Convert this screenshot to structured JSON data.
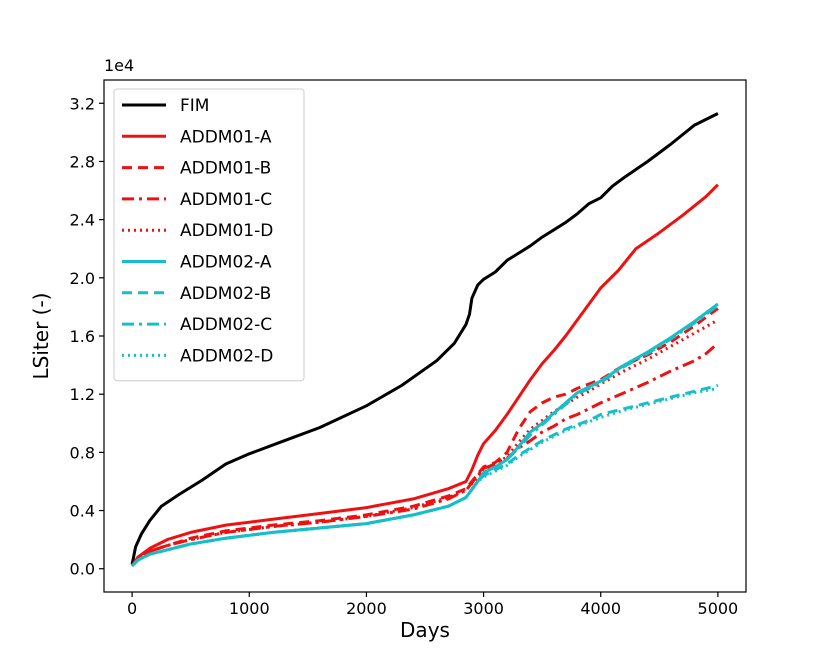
{
  "chart_data": {
    "type": "line",
    "xlabel": "Days",
    "ylabel": "LSiter  (-)",
    "offset_label": "1e4",
    "xlim": [
      -240,
      5240
    ],
    "ylim": [
      -0.16,
      3.36
    ],
    "xticks": [
      0,
      1000,
      2000,
      3000,
      4000,
      5000
    ],
    "yticks": [
      0.0,
      0.4,
      0.8,
      1.2,
      1.6,
      2.0,
      2.4,
      2.8,
      3.2
    ],
    "ytick_labels": [
      "0.0",
      "0.4",
      "0.8",
      "1.2",
      "1.6",
      "2.0",
      "2.4",
      "2.8",
      "3.2"
    ],
    "legend_position": "upper-left",
    "grid": false,
    "series": [
      {
        "name": "FIM",
        "color": "#000000",
        "dash": "solid",
        "x": [
          0,
          30,
          80,
          150,
          250,
          400,
          600,
          800,
          1000,
          1300,
          1600,
          2000,
          2300,
          2600,
          2750,
          2850,
          2880,
          2900,
          2950,
          3000,
          3100,
          3200,
          3300,
          3400,
          3500,
          3600,
          3700,
          3800,
          3900,
          4000,
          4100,
          4200,
          4400,
          4600,
          4800,
          5000
        ],
        "y": [
          0.03,
          0.15,
          0.24,
          0.33,
          0.43,
          0.51,
          0.61,
          0.72,
          0.79,
          0.88,
          0.97,
          1.12,
          1.26,
          1.43,
          1.55,
          1.68,
          1.75,
          1.86,
          1.95,
          1.99,
          2.04,
          2.12,
          2.17,
          2.22,
          2.28,
          2.33,
          2.38,
          2.44,
          2.51,
          2.55,
          2.63,
          2.69,
          2.8,
          2.92,
          3.05,
          3.13
        ]
      },
      {
        "name": "ADDM01-A",
        "color": "#ee1111",
        "dash": "solid",
        "x": [
          0,
          50,
          150,
          300,
          500,
          800,
          1200,
          1600,
          2000,
          2400,
          2700,
          2850,
          2900,
          2950,
          3000,
          3100,
          3200,
          3300,
          3400,
          3500,
          3600,
          3700,
          3800,
          3900,
          4000,
          4150,
          4300,
          4500,
          4700,
          4900,
          5000
        ],
        "y": [
          0.02,
          0.08,
          0.14,
          0.2,
          0.25,
          0.3,
          0.34,
          0.38,
          0.42,
          0.48,
          0.55,
          0.6,
          0.68,
          0.78,
          0.86,
          0.95,
          1.06,
          1.18,
          1.3,
          1.41,
          1.5,
          1.6,
          1.71,
          1.82,
          1.93,
          2.05,
          2.2,
          2.31,
          2.43,
          2.56,
          2.64
        ]
      },
      {
        "name": "ADDM01-B",
        "color": "#ee1111",
        "dash": "10,6",
        "x": [
          0,
          50,
          150,
          300,
          500,
          800,
          1200,
          1600,
          2000,
          2400,
          2700,
          2850,
          2950,
          3000,
          3100,
          3200,
          3300,
          3400,
          3500,
          3600,
          3700,
          3800,
          4000,
          4200,
          4400,
          4600,
          4800,
          5000
        ],
        "y": [
          0.02,
          0.07,
          0.12,
          0.16,
          0.21,
          0.26,
          0.3,
          0.33,
          0.37,
          0.43,
          0.5,
          0.55,
          0.65,
          0.7,
          0.73,
          0.8,
          0.96,
          1.08,
          1.14,
          1.18,
          1.2,
          1.24,
          1.3,
          1.4,
          1.47,
          1.56,
          1.67,
          1.79
        ]
      },
      {
        "name": "ADDM01-C",
        "color": "#ee1111",
        "dash": "12,5,3,5",
        "x": [
          0,
          50,
          150,
          300,
          500,
          800,
          1200,
          1600,
          2000,
          2400,
          2700,
          2850,
          2950,
          3000,
          3100,
          3200,
          3300,
          3400,
          3500,
          3600,
          3700,
          3800,
          3900,
          4000,
          4200,
          4400,
          4600,
          4800,
          4900,
          5000
        ],
        "y": [
          0.02,
          0.07,
          0.12,
          0.16,
          0.2,
          0.25,
          0.29,
          0.32,
          0.36,
          0.41,
          0.48,
          0.54,
          0.64,
          0.69,
          0.72,
          0.76,
          0.83,
          0.88,
          0.94,
          0.98,
          1.03,
          1.06,
          1.1,
          1.14,
          1.21,
          1.28,
          1.36,
          1.43,
          1.48,
          1.55
        ]
      },
      {
        "name": "ADDM01-D",
        "color": "#ee1111",
        "dash": "2,4",
        "x": [
          0,
          50,
          150,
          300,
          500,
          800,
          1200,
          1600,
          2000,
          2400,
          2700,
          2850,
          2950,
          3000,
          3100,
          3200,
          3300,
          3400,
          3500,
          3600,
          3700,
          3800,
          3900,
          4000,
          4200,
          4400,
          4600,
          4800,
          5000
        ],
        "y": [
          0.02,
          0.07,
          0.12,
          0.16,
          0.2,
          0.25,
          0.29,
          0.32,
          0.36,
          0.42,
          0.49,
          0.54,
          0.63,
          0.68,
          0.72,
          0.77,
          0.87,
          0.96,
          1.02,
          1.08,
          1.13,
          1.18,
          1.22,
          1.27,
          1.36,
          1.44,
          1.53,
          1.62,
          1.71
        ]
      },
      {
        "name": "ADDM02-A",
        "color": "#17bec9",
        "dash": "solid",
        "x": [
          0,
          50,
          150,
          300,
          500,
          800,
          1200,
          1600,
          2000,
          2400,
          2700,
          2850,
          2950,
          3000,
          3100,
          3200,
          3300,
          3400,
          3500,
          3600,
          3700,
          3800,
          3900,
          4000,
          4200,
          4400,
          4600,
          4800,
          5000
        ],
        "y": [
          0.02,
          0.06,
          0.1,
          0.13,
          0.17,
          0.21,
          0.25,
          0.28,
          0.31,
          0.37,
          0.43,
          0.49,
          0.6,
          0.66,
          0.7,
          0.75,
          0.84,
          0.94,
          1.0,
          1.07,
          1.14,
          1.21,
          1.25,
          1.29,
          1.4,
          1.49,
          1.59,
          1.7,
          1.82
        ]
      },
      {
        "name": "ADDM02-B",
        "color": "#17bec9",
        "dash": "10,6",
        "x": [
          0,
          50,
          150,
          300,
          500,
          800,
          1200,
          1600,
          2000,
          2400,
          2700,
          2850,
          2950,
          3000,
          3100,
          3200,
          3300,
          3400,
          3500,
          3600,
          3700,
          3800,
          3900,
          4000,
          4200,
          4400,
          4600,
          4800,
          5000
        ],
        "y": [
          0.02,
          0.06,
          0.1,
          0.13,
          0.17,
          0.21,
          0.25,
          0.28,
          0.31,
          0.37,
          0.43,
          0.49,
          0.6,
          0.64,
          0.68,
          0.72,
          0.78,
          0.83,
          0.88,
          0.92,
          0.96,
          0.99,
          1.02,
          1.06,
          1.1,
          1.14,
          1.18,
          1.22,
          1.26
        ]
      },
      {
        "name": "ADDM02-C",
        "color": "#17bec9",
        "dash": "12,5,3,5",
        "x": [
          0,
          50,
          150,
          300,
          500,
          800,
          1200,
          1600,
          2000,
          2400,
          2700,
          2850,
          2950,
          3000,
          3100,
          3200,
          3300,
          3400,
          3500,
          3600,
          3700,
          3800,
          3900,
          4000,
          4200,
          4400,
          4600,
          4800,
          5000
        ],
        "y": [
          0.02,
          0.06,
          0.1,
          0.13,
          0.17,
          0.21,
          0.25,
          0.28,
          0.31,
          0.37,
          0.43,
          0.49,
          0.6,
          0.66,
          0.7,
          0.75,
          0.83,
          0.92,
          0.99,
          1.06,
          1.13,
          1.2,
          1.24,
          1.28,
          1.39,
          1.48,
          1.58,
          1.69,
          1.81
        ]
      },
      {
        "name": "ADDM02-D",
        "color": "#17bec9",
        "dash": "2,4",
        "x": [
          0,
          50,
          150,
          300,
          500,
          800,
          1200,
          1600,
          2000,
          2400,
          2700,
          2850,
          2950,
          3000,
          3100,
          3200,
          3300,
          3400,
          3500,
          3600,
          3700,
          3800,
          3900,
          4000,
          4200,
          4400,
          4600,
          4800,
          5000
        ],
        "y": [
          0.02,
          0.06,
          0.1,
          0.13,
          0.17,
          0.21,
          0.25,
          0.28,
          0.31,
          0.37,
          0.43,
          0.49,
          0.6,
          0.63,
          0.67,
          0.71,
          0.77,
          0.82,
          0.87,
          0.91,
          0.95,
          0.98,
          1.01,
          1.04,
          1.09,
          1.13,
          1.17,
          1.21,
          1.24
        ]
      }
    ]
  }
}
